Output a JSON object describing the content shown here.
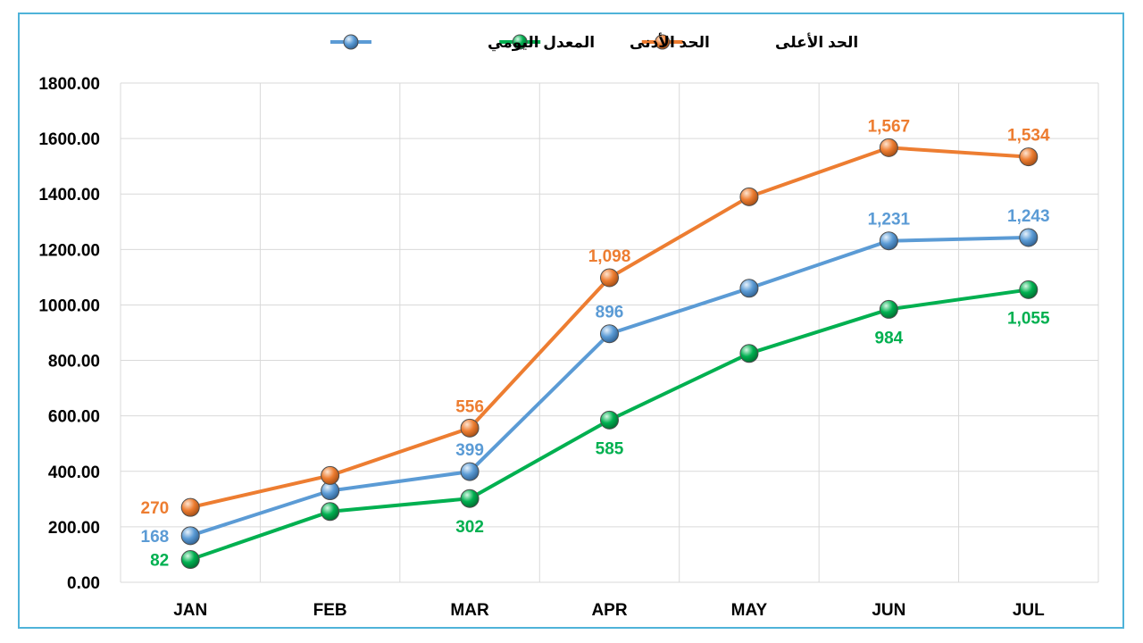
{
  "chart_data": {
    "type": "line",
    "categories": [
      "JAN",
      "FEB",
      "MAR",
      "APR",
      "MAY",
      "JUN",
      "JUL"
    ],
    "yticks": [
      "0.00",
      "200.00",
      "400.00",
      "600.00",
      "800.00",
      "1000.00",
      "1200.00",
      "1400.00",
      "1600.00",
      "1800.00"
    ],
    "ylim": [
      0,
      1800
    ],
    "grid": true,
    "legend_position": "top",
    "series": [
      {
        "name": "المعدل اليومي",
        "color": "#5B9BD5",
        "values": [
          168,
          330,
          399,
          896,
          1060,
          1231,
          1243
        ],
        "labels": [
          "168",
          "",
          "399",
          "896",
          "",
          "1,231",
          "1,243"
        ]
      },
      {
        "name": "الحد الأدنى",
        "color": "#00B050",
        "values": [
          82,
          255,
          302,
          585,
          825,
          984,
          1055
        ],
        "labels": [
          "82",
          "",
          "302",
          "585",
          "",
          "984",
          "1,055"
        ]
      },
      {
        "name": "الحد الأعلى",
        "color": "#ED7D31",
        "values": [
          270,
          385,
          556,
          1098,
          1390,
          1567,
          1534
        ],
        "labels": [
          "270",
          "",
          "556",
          "1,098",
          "",
          "1,567",
          "1,534"
        ]
      }
    ]
  }
}
